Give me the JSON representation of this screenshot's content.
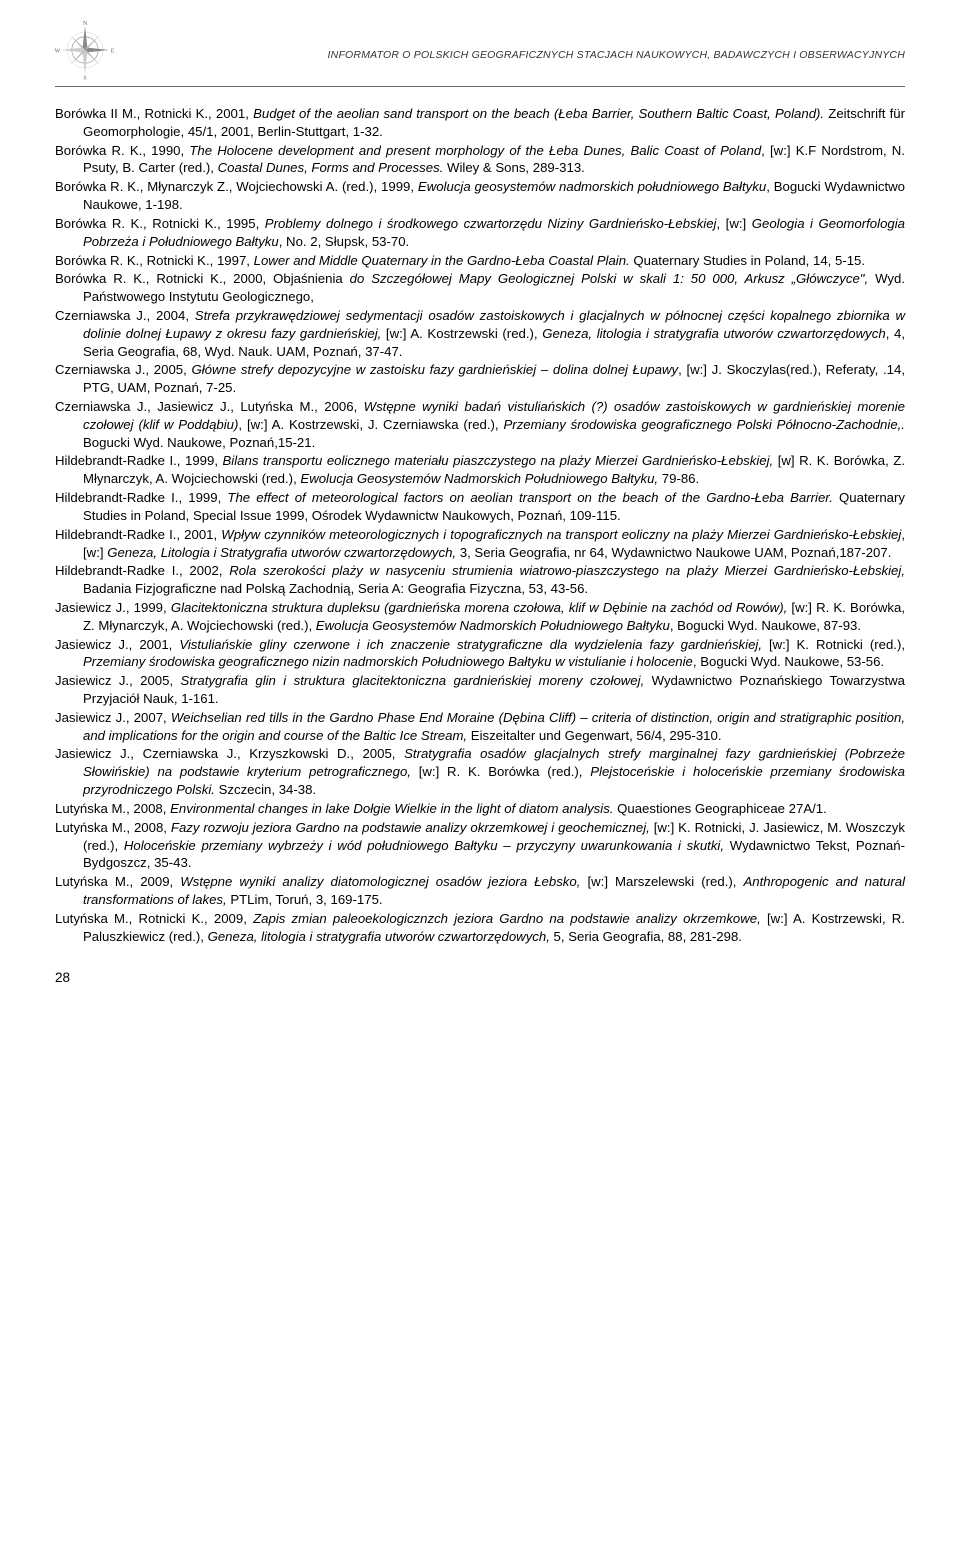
{
  "header": {
    "title": "INFORMATOR O POLSKICH GEOGRAFICZNYCH STACJACH NAUKOWYCH, BADAWCZYCH I OBSERWACYJNYCH"
  },
  "entries": [
    {
      "html": "Borówka II M., Rotnicki K., 2001, <i>Budget of the aeolian sand transport on the beach (Łeba Barrier, Southern Baltic Coast, Poland).</i> Zeitschrift für Geomorphologie, 45/1, 2001, Berlin-Stuttgart, 1-32."
    },
    {
      "html": "Borówka R. K., 1990, <i>The Holocene development and present morphology of the Łeba Dunes, Balic Coast of Poland</i>, [w:] K.F Nordstrom, N. Psuty, B. Carter (red.), <i>Coastal Dunes, Forms and Processes.</i> Wiley & Sons, 289-313."
    },
    {
      "html": "Borówka R. K., Młynarczyk Z., Wojciechowski A. (red.), 1999, <i>Ewolucja geosystemów nadmorskich południowego Bałtyku</i>, Bogucki Wydawnictwo Naukowe, 1-198."
    },
    {
      "html": "Borówka R. K., Rotnicki K., 1995, <i>Problemy dolnego i środkowego czwartorzędu Niziny Gardnieńsko-Łebskiej</i>, [w:] <i>Geologia i Geomorfologia Pobrzeża i Południowego Bałtyku</i>, No. 2, Słupsk, 53-70."
    },
    {
      "html": "Borówka R. K., Rotnicki K., 1997, <i>Lower and Middle Quaternary in the Gardno-Łeba Coastal Plain.</i> Quaternary Studies in Poland, 14, 5-15."
    },
    {
      "html": "Borówka R. K., Rotnicki K., 2000, Objaśnienia <i>do Szczegółowej Mapy Geologicznej  Polski w skali 1: 50 000, Arkusz „Główczyce\",</i> Wyd. Państwowego Instytutu Geologicznego,"
    },
    {
      "html": "Czerniawska J., 2004, <i>Strefa przykrawędziowej sedymentacji osadów zastoiskowych i glacjalnych w północnej części kopalnego zbiornika w dolinie dolnej Łupawy z okresu fazy gardnieńskiej,</i> [w:] A. Kostrzewski (red.), <i>Geneza, litologia i stratygrafia utworów czwartorzędowych</i>, 4, Seria Geografia, 68, Wyd. Nauk. UAM, Poznań, 37-47."
    },
    {
      "html": "Czerniawska J., 2005, <i>Główne strefy depozycyjne w zastoisku fazy gardnieńskiej – dolina dolnej Łupawy</i>, [w:] J. Skoczylas(red.), Referaty, .14, PTG, UAM, Poznań, 7-25."
    },
    {
      "html": "Czerniawska J., Jasiewicz J., Lutyńska M., 2006, <i>Wstępne wyniki badań vistuliańskich (?) osadów zastoiskowych w gardnieńskiej morenie czołowej (klif w Poddąbiu)</i>, [w:] A. Kostrzewski, J. Czerniawska (red.), <i>Przemiany środowiska geograficznego Polski Północno-Zachodnie,.</i> Bogucki Wyd. Naukowe, Poznań,15-21."
    },
    {
      "html": "Hildebrandt-Radke I., 1999, <i>Bilans transportu eolicznego materiału piaszczystego na plaży Mierzei Gardnieńsko-Łebskiej,</i> [w] R. K. Borówka, Z. Młynarczyk, A. Wojciechowski (red.), <i>Ewolucja Geosystemów Nadmorskich Południowego Bałtyku,</i> 79-86."
    },
    {
      "html": "Hildebrandt-Radke I., 1999, <i>The effect of meteorological factors on aeolian transport on the beach of the Gardno-Łeba Barrier.</i> Quaternary Studies in Poland, Special Issue 1999, Ośrodek Wydawnictw Naukowych, Poznań, 109-115."
    },
    {
      "html": "Hildebrandt-Radke I., 2001, <i>Wpływ czynników meteorologicznych i topograficznych na transport eoliczny na plaży Mierzei Gardnieńsko-Łebskiej</i>, [w:] <i>Geneza, Litologia i Stratygrafia utworów czwartorzędowych,</i> 3, Seria Geografia, nr 64, Wydawnictwo Naukowe UAM, Poznań,187-207."
    },
    {
      "html": "Hildebrandt-Radke I., 2002, <i>Rola szerokości plaży w nasyceniu strumienia wiatrowo-piaszczystego na plaży Mierzei Gardnieńsko-Łebskiej,</i> Badania Fizjograficzne nad Polską Zachodnią, Seria A: Geografia Fizyczna, 53, 43-56."
    },
    {
      "html": "Jasiewicz J., 1999, <i>Glacitektoniczna struktura dupleksu (gardnieńska morena czołowa, klif w Dębinie na zachód od Rowów),</i> [w:] R. K. Borówka, Z. Młynarczyk, A. Wojciechowski (red.), <i>Ewolucja Geosystemów Nadmorskich Południowego Bałtyku</i>, Bogucki Wyd. Naukowe, 87-93."
    },
    {
      "html": "Jasiewicz J., 2001, <i>Vistuliańskie gliny czerwone i ich znaczenie stratygraficzne dla wydzielenia fazy gardnieńskiej,</i> [w:] K. Rotnicki (red.), <i>Przemiany środowiska geograficznego nizin nadmorskich Południowego Bałtyku w vistulianie i holocenie</i>, Bogucki Wyd. Naukowe, 53-56."
    },
    {
      "html": "Jasiewicz J., 2005, <i>Stratygrafia glin i struktura glacitektoniczna gardnieńskiej moreny czołowej,</i> Wydawnictwo Poznańskiego Towarzystwa Przyjaciół Nauk, 1-161."
    },
    {
      "html": "Jasiewicz J., 2007, <i>Weichselian red tills in the Gardno Phase End Moraine (Dębina Cliff) – criteria of distinction, origin and stratigraphic position, and implications for the origin and course of the Baltic Ice Stream,</i> Eiszeitalter und Gegenwart, 56/4, 295-310."
    },
    {
      "html": "Jasiewicz J., Czerniawska J., Krzyszkowski D., 2005, <i>Stratygrafia osadów glacjalnych strefy marginalnej fazy gardnieńskiej (Pobrzeże Słowińskie) na podstawie kryterium petrograficznego,</i> [w:] R. K. Borówka (red.), <i>Plejstoceńskie i holoceńskie przemiany środowiska przyrodniczego Polski.</i> Szczecin, 34-38."
    },
    {
      "html": "Lutyńska M., 2008, <i>Environmental changes in lake Dołgie Wielkie in the light of diatom analysis.</i> Quaestiones Geographiceae 27A/1."
    },
    {
      "html": "Lutyńska M., 2008, <i>Fazy rozwoju jeziora Gardno na podstawie analizy okrzemkowej i geochemicznej,</i> [w:] K. Rotnicki, J. Jasiewicz, M. Woszczyk (red.), <i>Holoceńskie przemiany wybrzeży i wód południowego Bałtyku – przyczyny uwarunkowania i skutki,</i> Wydawnictwo Tekst, Poznań-Bydgoszcz, 35-43."
    },
    {
      "html": "Lutyńska M., 2009, <i>Wstępne wyniki analizy diatomologicznej osadów jeziora Łebsko,</i> [w:] Marszelewski (red.), <i>Anthropogenic and natural transformations of lakes,</i> PTLim, Toruń, 3, 169-175."
    },
    {
      "html": "Lutyńska M., Rotnicki K., 2009, <i>Zapis zmian paleoekologicznzch jeziora Gardno na podstawie analizy okrzemkowe,</i> [w:] A. Kostrzewski, R. Paluszkiewicz (red.), <i>Geneza, litologia i stratygrafia utworów czwartorzędowych,</i> 5, Seria Geografia, 88, 281-298."
    }
  ],
  "pageNumber": "28"
}
